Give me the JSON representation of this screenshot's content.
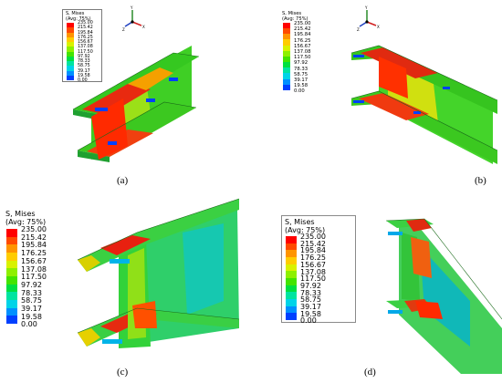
{
  "figure": {
    "legend": {
      "title_line1": "S, Mises",
      "title_line2": "(Avg: 75%)",
      "values": [
        "235.00",
        "215.42",
        "195.84",
        "176.25",
        "156.67",
        "137.08",
        "117.50",
        "97.92",
        "78.33",
        "58.75",
        "39.17",
        "19.58",
        "0.00"
      ],
      "colors": [
        "#ff0000",
        "#ff4a00",
        "#ff9400",
        "#ffcc00",
        "#d9f200",
        "#8ef000",
        "#43e400",
        "#00e040",
        "#00e4a0",
        "#00d4e8",
        "#0090ff",
        "#0040ff",
        "#0000ff"
      ]
    },
    "panels": [
      {
        "id": "a",
        "label": "(a)"
      },
      {
        "id": "b",
        "label": "(b)"
      },
      {
        "id": "c",
        "label": "(c)"
      },
      {
        "id": "d",
        "label": "(d)"
      }
    ],
    "triad": {
      "x": "X",
      "y": "Y",
      "z": "Z"
    }
  }
}
